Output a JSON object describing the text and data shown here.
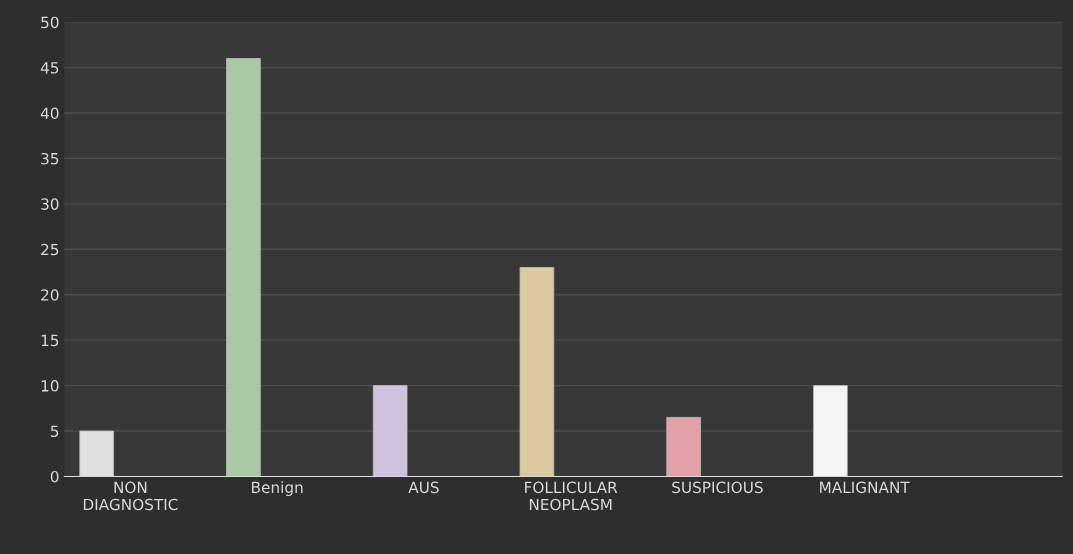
{
  "chart_data": {
    "type": "bar",
    "categories": [
      "NON\nDIAGNOSTIC",
      "Benign",
      "AUS",
      "FOLLICULAR\nNEOPLASM",
      "SUSPICIOUS",
      "MALIGNANT"
    ],
    "values": [
      5,
      46,
      10,
      23,
      6.5,
      10
    ],
    "colors": [
      "#e0e0e0",
      "#a9c9a4",
      "#cfc3e0",
      "#dcc9a0",
      "#e2a0a8",
      "#f5f5f5"
    ],
    "ylim": [
      0,
      50
    ],
    "yticks": [
      0,
      5,
      10,
      15,
      20,
      25,
      30,
      35,
      40,
      45,
      50
    ],
    "grid": "y"
  }
}
